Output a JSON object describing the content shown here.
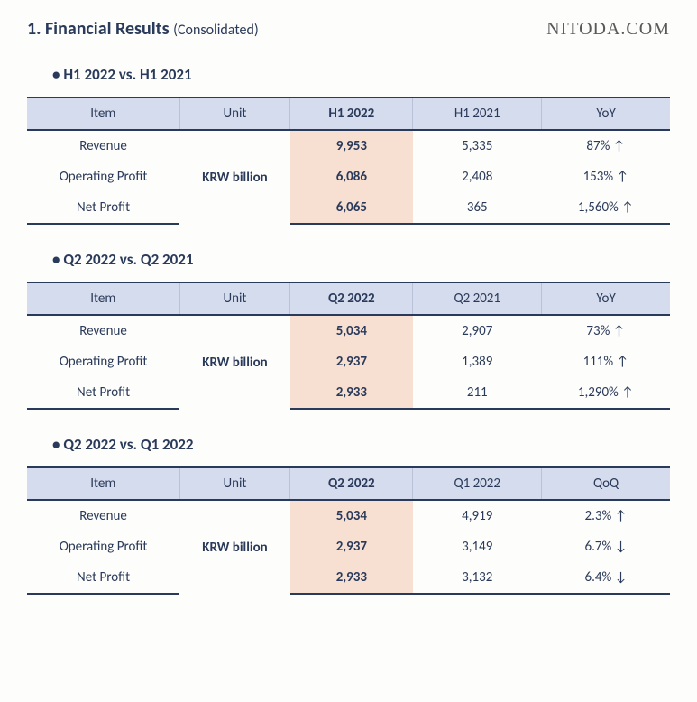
{
  "page": {
    "title_main": "1. Financial Results",
    "title_sub": "(Consolidated)",
    "watermark": "NITODA.COM"
  },
  "colors": {
    "header_bg": "#d5dced",
    "highlight_bg": "#f7e0d2",
    "border_dark": "#2a3a5a",
    "text": "#2a3a5a"
  },
  "tables": [
    {
      "title": "H1 2022 vs. H1 2021",
      "columns": [
        "Item",
        "Unit",
        "H1 2022",
        "H1 2021",
        "YoY"
      ],
      "unit": "KRW billion",
      "rows": [
        {
          "item": "Revenue",
          "current": "9,953",
          "prev": "5,335",
          "change": "87% ↑"
        },
        {
          "item": "Operating Profit",
          "current": "6,086",
          "prev": "2,408",
          "change": "153% ↑"
        },
        {
          "item": "Net Profit",
          "current": "6,065",
          "prev": "365",
          "change": "1,560% ↑"
        }
      ]
    },
    {
      "title": "Q2 2022 vs. Q2 2021",
      "columns": [
        "Item",
        "Unit",
        "Q2 2022",
        "Q2 2021",
        "YoY"
      ],
      "unit": "KRW billion",
      "rows": [
        {
          "item": "Revenue",
          "current": "5,034",
          "prev": "2,907",
          "change": "73% ↑"
        },
        {
          "item": "Operating Profit",
          "current": "2,937",
          "prev": "1,389",
          "change": "111% ↑"
        },
        {
          "item": "Net Profit",
          "current": "2,933",
          "prev": "211",
          "change": "1,290% ↑"
        }
      ]
    },
    {
      "title": "Q2 2022 vs. Q1 2022",
      "columns": [
        "Item",
        "Unit",
        "Q2 2022",
        "Q1 2022",
        "QoQ"
      ],
      "unit": "KRW billion",
      "rows": [
        {
          "item": "Revenue",
          "current": "5,034",
          "prev": "4,919",
          "change": "2.3% ↑"
        },
        {
          "item": "Operating Profit",
          "current": "2,937",
          "prev": "3,149",
          "change": "6.7% ↓"
        },
        {
          "item": "Net Profit",
          "current": "2,933",
          "prev": "3,132",
          "change": "6.4% ↓"
        }
      ]
    }
  ]
}
